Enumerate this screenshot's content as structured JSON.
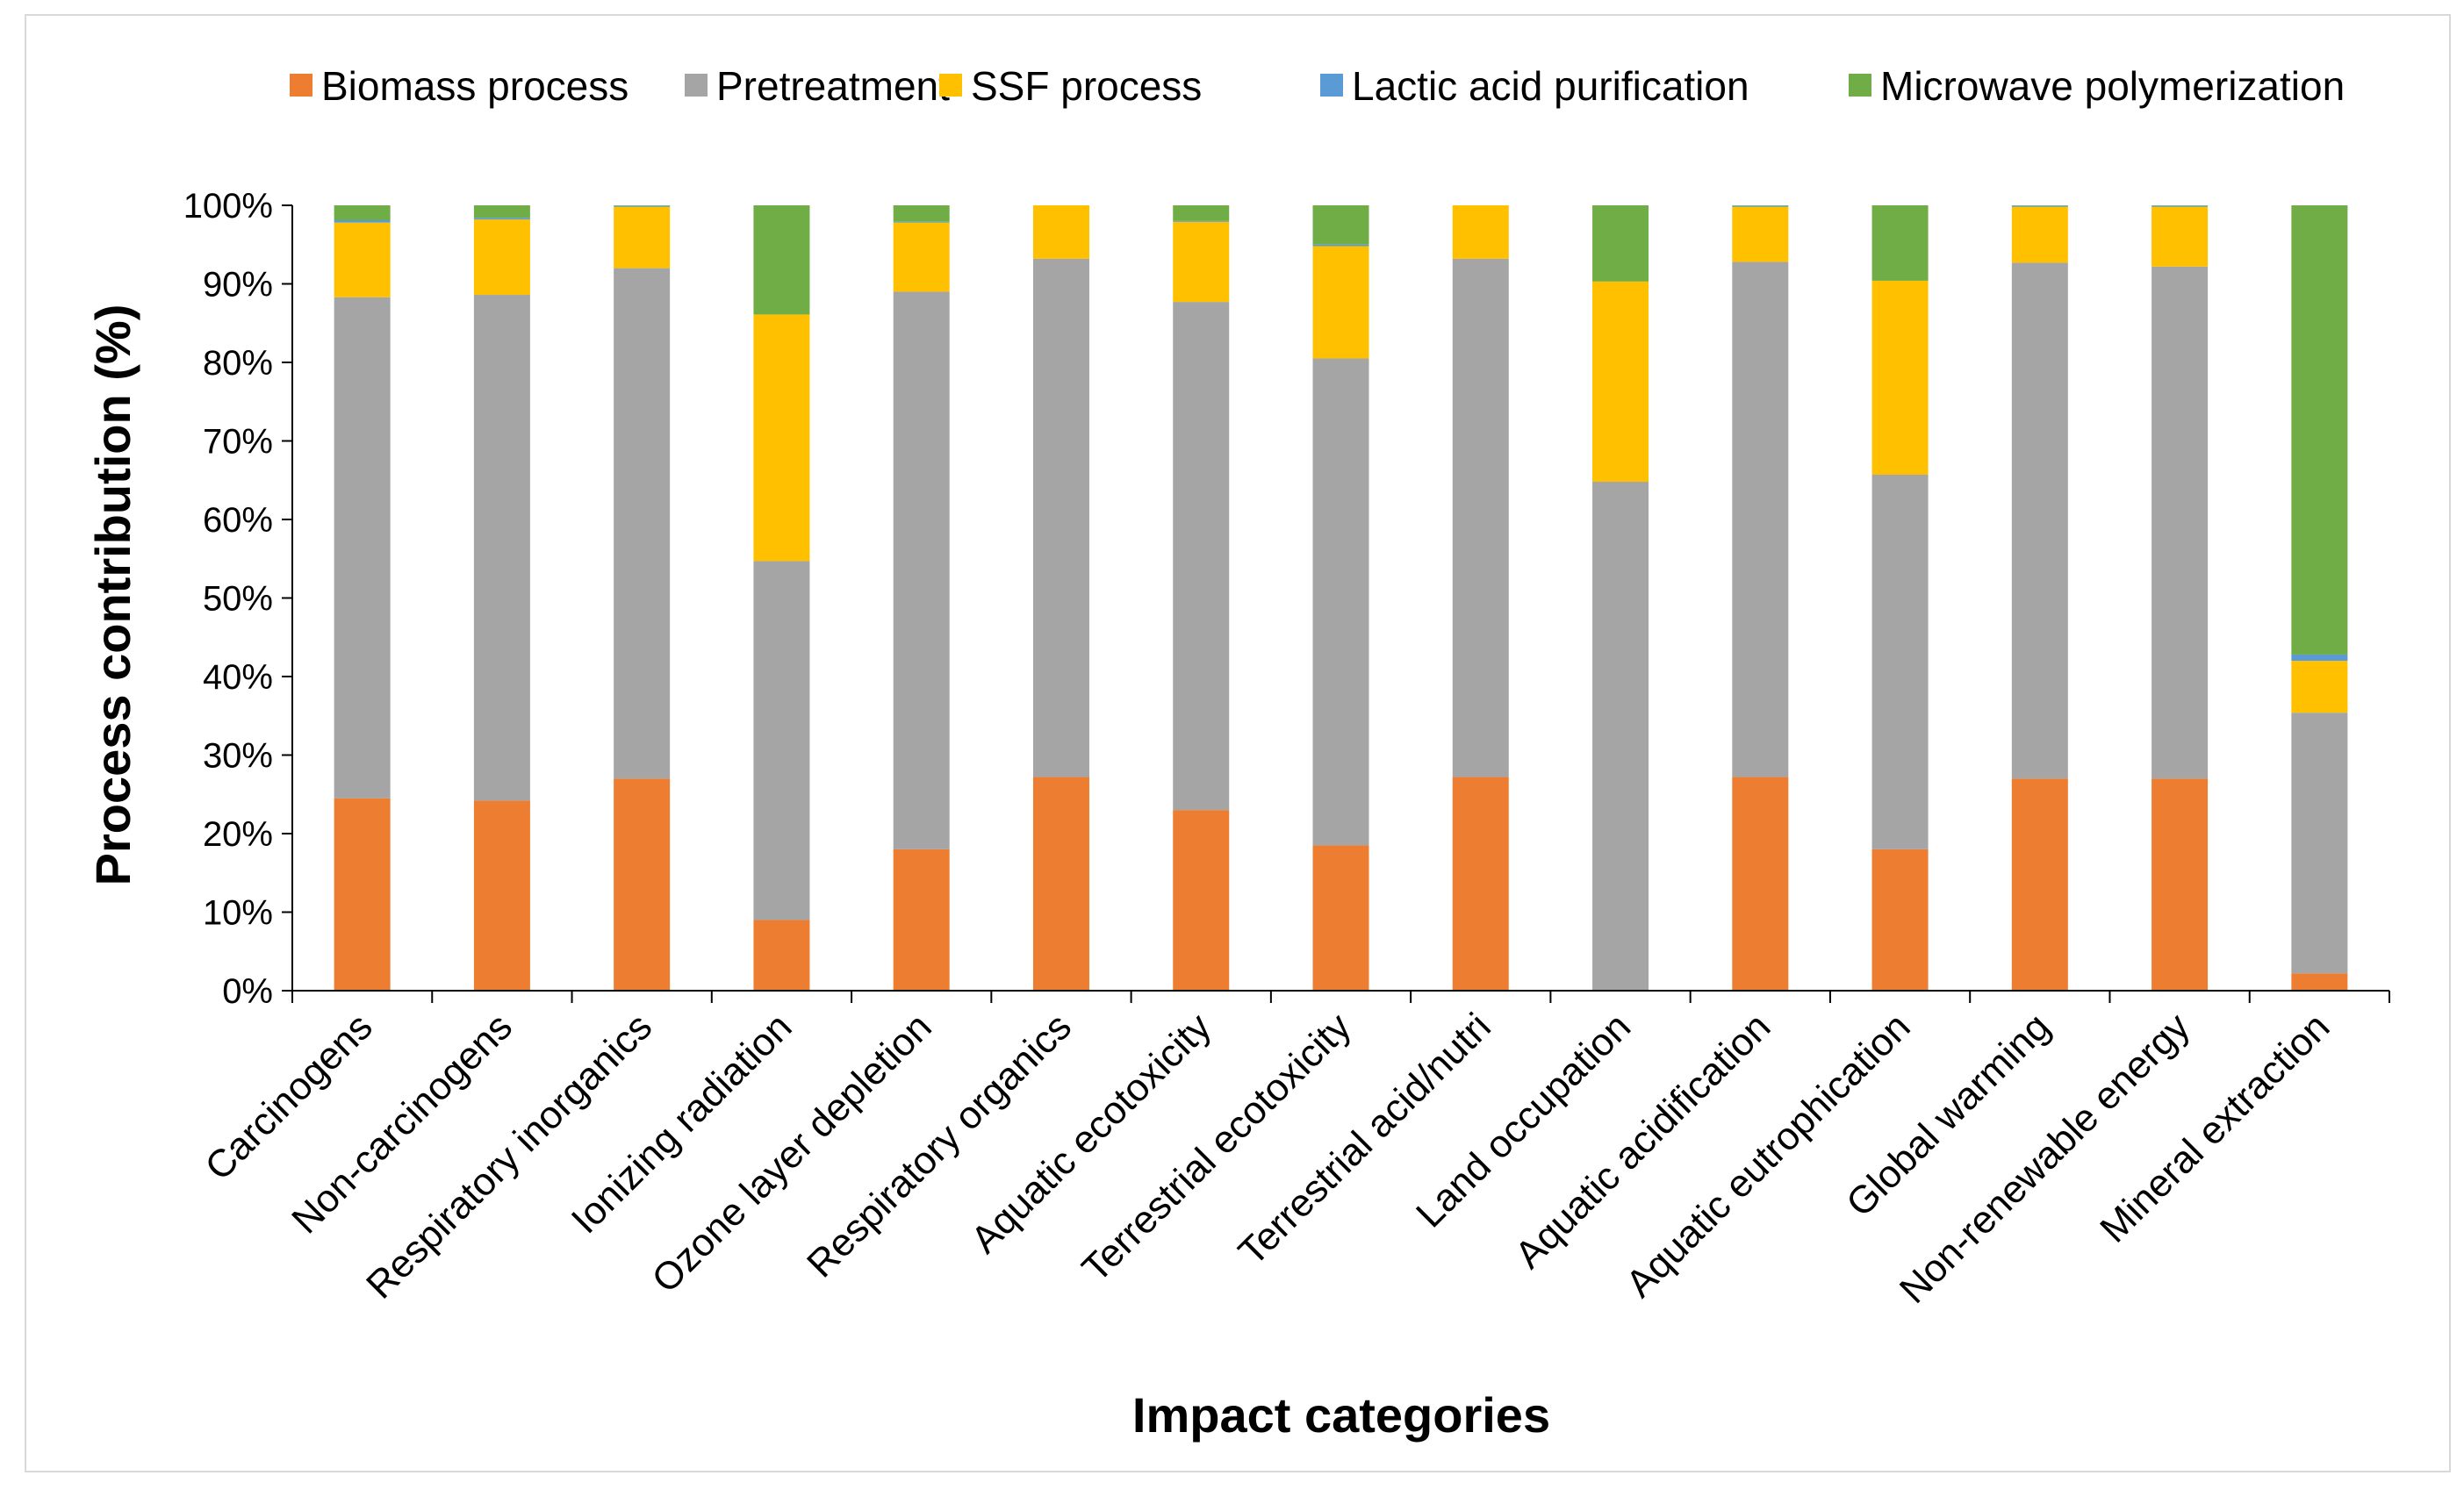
{
  "chart_data": {
    "type": "bar",
    "stacked": true,
    "title": "",
    "xlabel": "Impact categories",
    "ylabel": "Process contribution (%)",
    "ylim": [
      0,
      100
    ],
    "yticks": [
      "0%",
      "10%",
      "20%",
      "30%",
      "40%",
      "50%",
      "60%",
      "70%",
      "80%",
      "90%",
      "100%"
    ],
    "grid": false,
    "legend_position": "top",
    "categories": [
      "Carcinogens",
      "Non-carcinogens",
      "Respiratory inorganics",
      "Ionizing radiation",
      "Ozone layer depletion",
      "Respiratory organics",
      "Aquatic ecotoxicity",
      "Terrestrial ecotoxicity",
      "Terrestrial acid/nutri",
      "Land occupation",
      "Aquatic acidification",
      "Aquatic eutrophication",
      "Global warming",
      "Non-renewable energy",
      "Mineral extraction"
    ],
    "series": [
      {
        "name": "Biomass process",
        "color": "#ED7D31",
        "values": [
          24.5,
          24.2,
          27.0,
          9.0,
          18.0,
          27.2,
          23.0,
          18.5,
          27.2,
          0.0,
          27.2,
          18.0,
          27.0,
          27.0,
          2.2
        ]
      },
      {
        "name": "Pretreatment",
        "color": "#A5A5A5",
        "values": [
          63.8,
          64.4,
          65.0,
          45.7,
          71.0,
          66.0,
          64.7,
          62.0,
          66.0,
          64.8,
          65.6,
          47.7,
          65.7,
          65.2,
          33.2
        ]
      },
      {
        "name": "SSF process",
        "color": "#FFC000",
        "values": [
          9.5,
          9.6,
          7.8,
          31.4,
          8.8,
          6.8,
          10.2,
          14.3,
          6.8,
          25.5,
          7.0,
          24.7,
          7.1,
          7.6,
          6.6
        ]
      },
      {
        "name": "Lactic acid purification",
        "color": "#5B9BD5",
        "values": [
          0.3,
          0.2,
          0.1,
          0.0,
          0.1,
          0.0,
          0.1,
          0.2,
          0.0,
          0.0,
          0.1,
          0.0,
          0.1,
          0.1,
          0.8
        ]
      },
      {
        "name": "Microwave polymerization",
        "color": "#70AD47",
        "values": [
          1.9,
          1.6,
          0.1,
          13.9,
          2.1,
          0.0,
          2.0,
          5.0,
          0.0,
          9.7,
          0.1,
          9.6,
          0.1,
          0.1,
          57.2
        ]
      }
    ]
  }
}
